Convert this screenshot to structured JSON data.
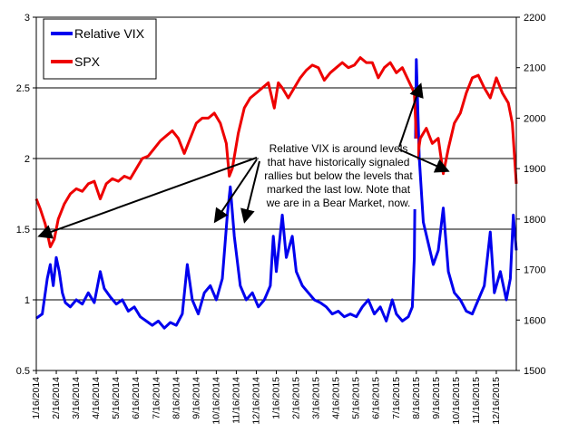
{
  "chart_data": {
    "type": "line",
    "title": "",
    "xlabel": "",
    "ylabel_left": "",
    "ylabel_right": "",
    "x_tick_labels": [
      "1/16/2014",
      "2/16/2014",
      "3/16/2014",
      "4/16/2014",
      "5/16/2014",
      "6/16/2014",
      "7/16/2014",
      "8/16/2014",
      "9/16/2014",
      "10/16/2014",
      "11/16/2014",
      "12/16/2014",
      "1/16/2015",
      "2/16/2015",
      "3/16/2015",
      "4/16/2015",
      "5/16/2015",
      "6/16/2015",
      "7/16/2015",
      "8/16/2015",
      "9/16/2015",
      "10/16/2015",
      "11/16/2015",
      "12/16/2015"
    ],
    "y_left": {
      "min": 0.5,
      "max": 3,
      "ticks": [
        "0.5",
        "1",
        "1.5",
        "2",
        "2.5",
        "3"
      ],
      "gridlines": [
        1,
        1.5,
        2,
        2.5
      ]
    },
    "y_right": {
      "min": 1500,
      "max": 2200,
      "ticks": [
        "1500",
        "1600",
        "1700",
        "1800",
        "1900",
        "2000",
        "2100",
        "2200"
      ]
    },
    "legend": {
      "placement": "top-left",
      "entries": [
        {
          "name": "Relative VIX",
          "color": "#0000ee"
        },
        {
          "name": "SPX",
          "color": "#ee0000"
        }
      ]
    },
    "annotation": {
      "lines": [
        "Relative VIX is around levels",
        "that have historically signaled",
        "rallies but below the levels that",
        "marked the last low.  Note that",
        "we are in a Bear Market, now."
      ]
    },
    "series": [
      {
        "name": "Relative VIX",
        "axis": "left",
        "color": "#0000ee",
        "points": [
          [
            0,
            0.87
          ],
          [
            0.3,
            0.9
          ],
          [
            0.55,
            1.15
          ],
          [
            0.7,
            1.25
          ],
          [
            0.85,
            1.1
          ],
          [
            1.0,
            1.3
          ],
          [
            1.15,
            1.2
          ],
          [
            1.3,
            1.05
          ],
          [
            1.45,
            0.98
          ],
          [
            1.7,
            0.95
          ],
          [
            2.0,
            1.0
          ],
          [
            2.3,
            0.97
          ],
          [
            2.6,
            1.05
          ],
          [
            2.9,
            0.98
          ],
          [
            3.2,
            1.2
          ],
          [
            3.4,
            1.08
          ],
          [
            3.7,
            1.02
          ],
          [
            4.0,
            0.97
          ],
          [
            4.3,
            1.0
          ],
          [
            4.6,
            0.92
          ],
          [
            4.9,
            0.95
          ],
          [
            5.2,
            0.88
          ],
          [
            5.5,
            0.85
          ],
          [
            5.8,
            0.82
          ],
          [
            6.1,
            0.85
          ],
          [
            6.4,
            0.8
          ],
          [
            6.7,
            0.84
          ],
          [
            7.0,
            0.82
          ],
          [
            7.3,
            0.9
          ],
          [
            7.55,
            1.25
          ],
          [
            7.8,
            1.0
          ],
          [
            8.1,
            0.9
          ],
          [
            8.4,
            1.05
          ],
          [
            8.7,
            1.1
          ],
          [
            9.0,
            1.0
          ],
          [
            9.3,
            1.15
          ],
          [
            9.55,
            1.6
          ],
          [
            9.7,
            1.8
          ],
          [
            9.9,
            1.45
          ],
          [
            10.2,
            1.1
          ],
          [
            10.5,
            1.0
          ],
          [
            10.8,
            1.05
          ],
          [
            11.1,
            0.95
          ],
          [
            11.4,
            1.0
          ],
          [
            11.7,
            1.1
          ],
          [
            11.85,
            1.45
          ],
          [
            12.0,
            1.2
          ],
          [
            12.3,
            1.6
          ],
          [
            12.5,
            1.3
          ],
          [
            12.8,
            1.45
          ],
          [
            13.0,
            1.2
          ],
          [
            13.3,
            1.1
          ],
          [
            13.6,
            1.05
          ],
          [
            13.9,
            1.0
          ],
          [
            14.2,
            0.98
          ],
          [
            14.5,
            0.95
          ],
          [
            14.8,
            0.9
          ],
          [
            15.1,
            0.92
          ],
          [
            15.4,
            0.88
          ],
          [
            15.7,
            0.9
          ],
          [
            16.0,
            0.88
          ],
          [
            16.3,
            0.95
          ],
          [
            16.6,
            1.0
          ],
          [
            16.9,
            0.9
          ],
          [
            17.2,
            0.95
          ],
          [
            17.5,
            0.85
          ],
          [
            17.8,
            1.0
          ],
          [
            18.0,
            0.9
          ],
          [
            18.3,
            0.85
          ],
          [
            18.6,
            0.88
          ],
          [
            18.8,
            0.95
          ],
          [
            18.9,
            1.3
          ],
          [
            19.0,
            2.7
          ],
          [
            19.15,
            2.0
          ],
          [
            19.35,
            1.55
          ],
          [
            19.6,
            1.4
          ],
          [
            19.85,
            1.25
          ],
          [
            20.1,
            1.35
          ],
          [
            20.35,
            1.65
          ],
          [
            20.6,
            1.2
          ],
          [
            20.9,
            1.05
          ],
          [
            21.2,
            1.0
          ],
          [
            21.5,
            0.92
          ],
          [
            21.8,
            0.9
          ],
          [
            22.1,
            1.0
          ],
          [
            22.4,
            1.1
          ],
          [
            22.7,
            1.48
          ],
          [
            22.9,
            1.05
          ],
          [
            23.2,
            1.2
          ],
          [
            23.5,
            1.0
          ],
          [
            23.7,
            1.15
          ],
          [
            23.85,
            1.6
          ],
          [
            24.0,
            1.35
          ]
        ]
      },
      {
        "name": "SPX",
        "axis": "right",
        "color": "#ee0000",
        "points": [
          [
            0,
            1840
          ],
          [
            0.2,
            1820
          ],
          [
            0.45,
            1790
          ],
          [
            0.7,
            1745
          ],
          [
            0.9,
            1760
          ],
          [
            1.1,
            1800
          ],
          [
            1.4,
            1830
          ],
          [
            1.7,
            1850
          ],
          [
            2.0,
            1860
          ],
          [
            2.3,
            1855
          ],
          [
            2.6,
            1870
          ],
          [
            2.9,
            1875
          ],
          [
            3.2,
            1840
          ],
          [
            3.5,
            1870
          ],
          [
            3.8,
            1880
          ],
          [
            4.1,
            1875
          ],
          [
            4.4,
            1885
          ],
          [
            4.7,
            1880
          ],
          [
            5.0,
            1900
          ],
          [
            5.3,
            1920
          ],
          [
            5.6,
            1925
          ],
          [
            5.9,
            1940
          ],
          [
            6.2,
            1955
          ],
          [
            6.5,
            1965
          ],
          [
            6.8,
            1975
          ],
          [
            7.1,
            1960
          ],
          [
            7.4,
            1930
          ],
          [
            7.7,
            1960
          ],
          [
            8.0,
            1990
          ],
          [
            8.3,
            2000
          ],
          [
            8.6,
            2000
          ],
          [
            8.9,
            2010
          ],
          [
            9.2,
            1990
          ],
          [
            9.5,
            1950
          ],
          [
            9.65,
            1885
          ],
          [
            9.8,
            1900
          ],
          [
            10.1,
            1970
          ],
          [
            10.4,
            2020
          ],
          [
            10.7,
            2040
          ],
          [
            11.0,
            2050
          ],
          [
            11.3,
            2060
          ],
          [
            11.6,
            2070
          ],
          [
            11.9,
            2020
          ],
          [
            12.1,
            2070
          ],
          [
            12.3,
            2060
          ],
          [
            12.6,
            2040
          ],
          [
            12.9,
            2060
          ],
          [
            13.2,
            2080
          ],
          [
            13.5,
            2095
          ],
          [
            13.8,
            2105
          ],
          [
            14.1,
            2100
          ],
          [
            14.4,
            2075
          ],
          [
            14.7,
            2090
          ],
          [
            15.0,
            2100
          ],
          [
            15.3,
            2110
          ],
          [
            15.6,
            2100
          ],
          [
            15.9,
            2105
          ],
          [
            16.2,
            2120
          ],
          [
            16.5,
            2110
          ],
          [
            16.8,
            2110
          ],
          [
            17.1,
            2080
          ],
          [
            17.4,
            2100
          ],
          [
            17.7,
            2110
          ],
          [
            18.0,
            2090
          ],
          [
            18.3,
            2100
          ],
          [
            18.6,
            2075
          ],
          [
            18.9,
            2050
          ],
          [
            19.05,
            1920
          ],
          [
            19.2,
            1960
          ],
          [
            19.5,
            1980
          ],
          [
            19.8,
            1950
          ],
          [
            20.1,
            1960
          ],
          [
            20.35,
            1890
          ],
          [
            20.6,
            1940
          ],
          [
            20.9,
            1990
          ],
          [
            21.2,
            2010
          ],
          [
            21.5,
            2050
          ],
          [
            21.8,
            2080
          ],
          [
            22.1,
            2085
          ],
          [
            22.4,
            2060
          ],
          [
            22.7,
            2040
          ],
          [
            23.0,
            2080
          ],
          [
            23.3,
            2050
          ],
          [
            23.6,
            2030
          ],
          [
            23.8,
            1990
          ],
          [
            24.0,
            1870
          ]
        ]
      }
    ]
  }
}
